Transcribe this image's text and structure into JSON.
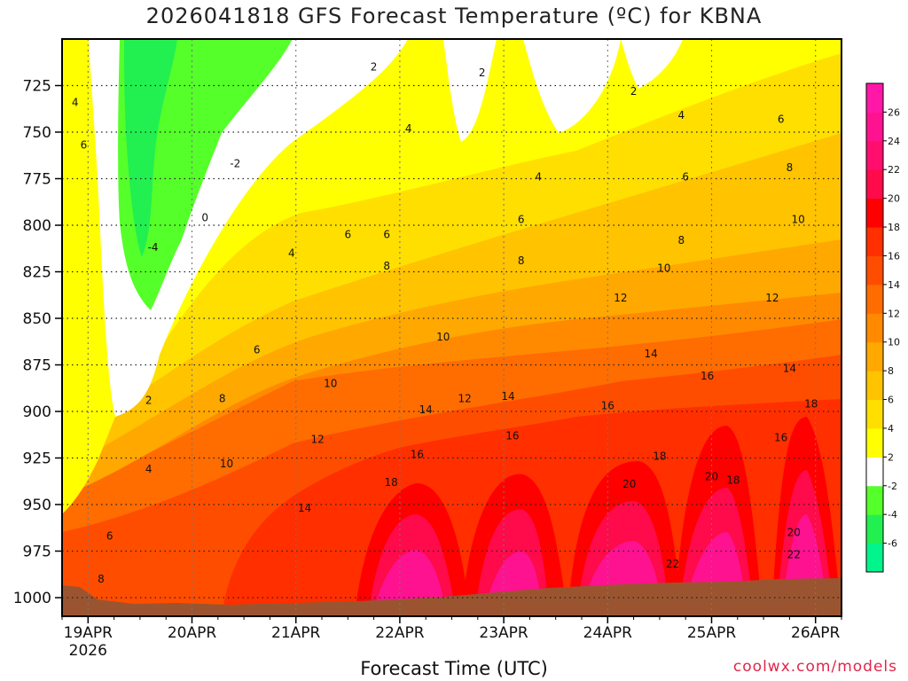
{
  "chart_data": {
    "type": "heatmap",
    "title": "2026041818 GFS Forecast Temperature (ºC) for KBNA",
    "xlabel": "Forecast Time (UTC)",
    "ylabel": "",
    "credit": "coolwx.com/models",
    "x_ticks": [
      "19APR",
      "20APR",
      "21APR",
      "22APR",
      "23APR",
      "24APR",
      "25APR",
      "26APR"
    ],
    "x_tick_hours": [
      6,
      30,
      54,
      78,
      102,
      126,
      150,
      174
    ],
    "x_sublabel": "2026",
    "xlim_hours": [
      0,
      180
    ],
    "y_ticks": [
      725,
      750,
      775,
      800,
      825,
      850,
      875,
      900,
      925,
      950,
      975,
      1000
    ],
    "ylim": [
      1010,
      700
    ],
    "grid": true,
    "colorbar": {
      "levels": [
        -8,
        -6,
        -4,
        -2,
        2,
        4,
        6,
        8,
        10,
        12,
        14,
        16,
        18,
        20,
        22,
        24,
        26,
        28
      ],
      "colors": [
        "#00f58c",
        "#22f050",
        "#55ff2a",
        "#ffffff",
        "#ffff00",
        "#ffdf00",
        "#ffc300",
        "#ffa800",
        "#ff8a00",
        "#ff6c00",
        "#ff4d00",
        "#ff2f00",
        "#ff0000",
        "#ff0a4a",
        "#ff0e6e",
        "#ff1290",
        "#ff18a8"
      ],
      "tick_labels": [
        "-6",
        "-4",
        "-2",
        "2",
        "4",
        "6",
        "8",
        "10",
        "12",
        "14",
        "16",
        "18",
        "20",
        "22",
        "24",
        "26"
      ]
    },
    "contour_labels": [
      {
        "value": 4,
        "t": 3,
        "p": 734
      },
      {
        "value": 6,
        "t": 5,
        "p": 757
      },
      {
        "value": 2,
        "t": 72,
        "p": 715
      },
      {
        "value": 2,
        "t": 97,
        "p": 718
      },
      {
        "value": 2,
        "t": 132,
        "p": 728
      },
      {
        "value": -2,
        "t": 40,
        "p": 767
      },
      {
        "value": 0,
        "t": 33,
        "p": 796
      },
      {
        "value": -4,
        "t": 21,
        "p": 812
      },
      {
        "value": 4,
        "t": 80,
        "p": 748
      },
      {
        "value": 4,
        "t": 110,
        "p": 774
      },
      {
        "value": 4,
        "t": 143,
        "p": 741
      },
      {
        "value": 6,
        "t": 166,
        "p": 743
      },
      {
        "value": 8,
        "t": 168,
        "p": 769
      },
      {
        "value": 6,
        "t": 144,
        "p": 774
      },
      {
        "value": 10,
        "t": 170,
        "p": 797
      },
      {
        "value": 8,
        "t": 143,
        "p": 808
      },
      {
        "value": 6,
        "t": 66,
        "p": 805
      },
      {
        "value": 6,
        "t": 75,
        "p": 805
      },
      {
        "value": 6,
        "t": 106,
        "p": 797
      },
      {
        "value": 4,
        "t": 53,
        "p": 815
      },
      {
        "value": 8,
        "t": 75,
        "p": 822
      },
      {
        "value": 8,
        "t": 106,
        "p": 819
      },
      {
        "value": 10,
        "t": 139,
        "p": 823
      },
      {
        "value": 12,
        "t": 129,
        "p": 839
      },
      {
        "value": 12,
        "t": 164,
        "p": 839
      },
      {
        "value": 6,
        "t": 45,
        "p": 867
      },
      {
        "value": 10,
        "t": 88,
        "p": 860
      },
      {
        "value": 14,
        "t": 136,
        "p": 869
      },
      {
        "value": 16,
        "t": 149,
        "p": 881
      },
      {
        "value": 14,
        "t": 168,
        "p": 877
      },
      {
        "value": 10,
        "t": 62,
        "p": 885
      },
      {
        "value": 12,
        "t": 93,
        "p": 893
      },
      {
        "value": 14,
        "t": 103,
        "p": 892
      },
      {
        "value": 14,
        "t": 84,
        "p": 899
      },
      {
        "value": 16,
        "t": 126,
        "p": 897
      },
      {
        "value": 18,
        "t": 173,
        "p": 896
      },
      {
        "value": 16,
        "t": 104,
        "p": 913
      },
      {
        "value": 16,
        "t": 166,
        "p": 914
      },
      {
        "value": 8,
        "t": 37,
        "p": 893
      },
      {
        "value": 12,
        "t": 59,
        "p": 915
      },
      {
        "value": 16,
        "t": 82,
        "p": 923
      },
      {
        "value": 18,
        "t": 138,
        "p": 924
      },
      {
        "value": 20,
        "t": 131,
        "p": 939
      },
      {
        "value": 20,
        "t": 150,
        "p": 935
      },
      {
        "value": 18,
        "t": 155,
        "p": 937
      },
      {
        "value": 18,
        "t": 76,
        "p": 938
      },
      {
        "value": 10,
        "t": 38,
        "p": 928
      },
      {
        "value": 4,
        "t": 20,
        "p": 931
      },
      {
        "value": 2,
        "t": 20,
        "p": 894
      },
      {
        "value": 14,
        "t": 56,
        "p": 952
      },
      {
        "value": 20,
        "t": 169,
        "p": 965
      },
      {
        "value": 22,
        "t": 141,
        "p": 982
      },
      {
        "value": 22,
        "t": 169,
        "p": 977
      },
      {
        "value": 6,
        "t": 11,
        "p": 967
      },
      {
        "value": 8,
        "t": 9,
        "p": 990
      }
    ]
  }
}
